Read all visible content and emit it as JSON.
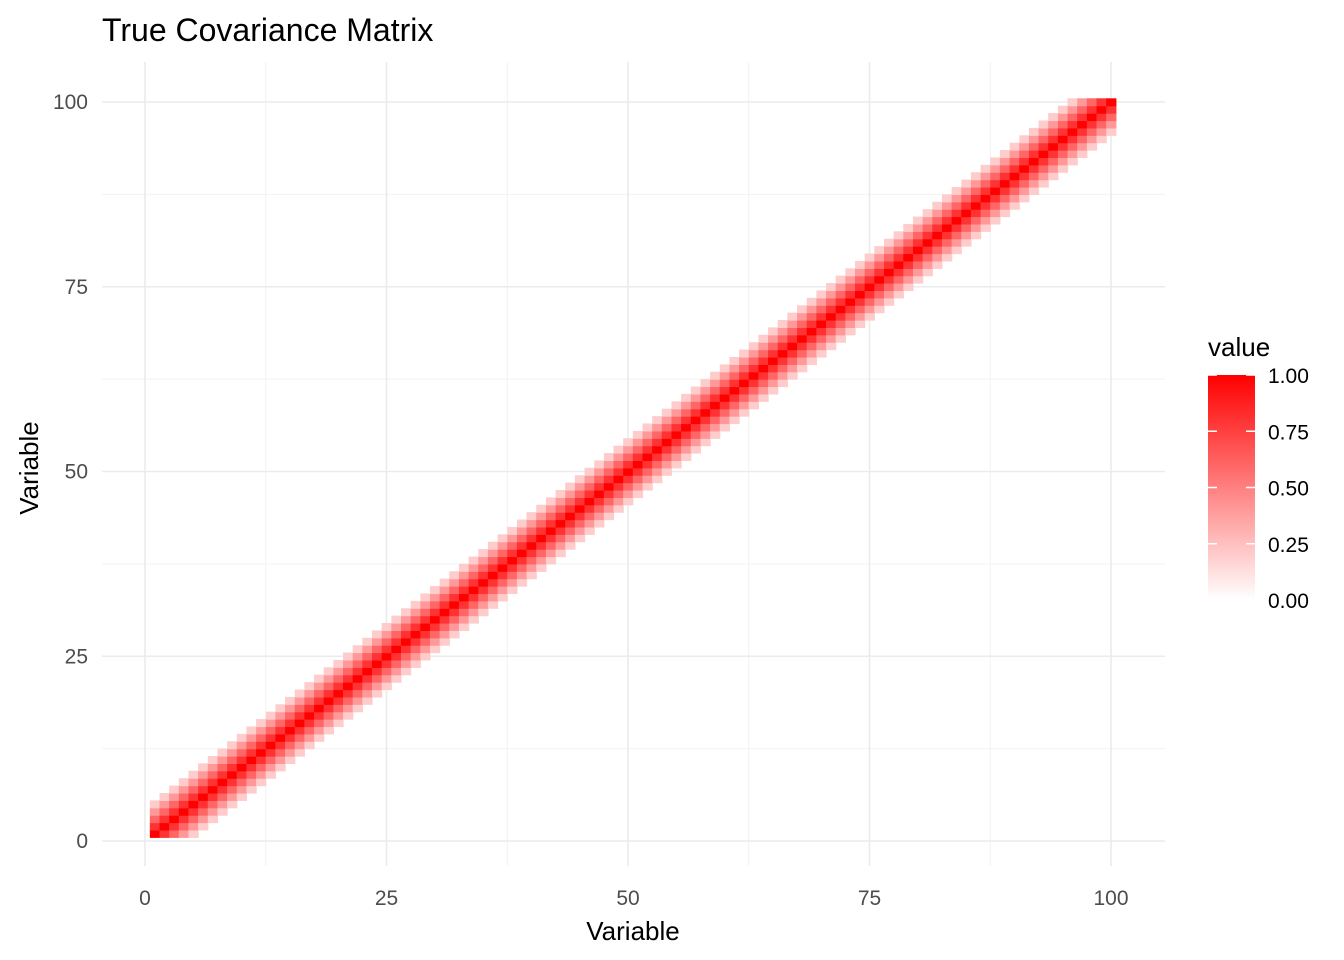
{
  "chart_data": {
    "type": "heatmap",
    "title": "True Covariance Matrix",
    "xlabel": "Variable",
    "ylabel": "Variable",
    "xlim": [
      0,
      100
    ],
    "ylim": [
      0,
      100
    ],
    "x_ticks": [
      "0",
      "25",
      "50",
      "75",
      "100"
    ],
    "y_ticks": [
      "0",
      "25",
      "50",
      "75",
      "100"
    ],
    "n_variables": 100,
    "matrix_rule": "value(i,j) = 1 - |i-j|/5 for |i-j| < 5, otherwise 0 (banded)",
    "band_values_by_offset": [
      1.0,
      0.8,
      0.6,
      0.4,
      0.2,
      0.0
    ],
    "grid": true,
    "legend": {
      "title": "value",
      "position": "right",
      "labels": [
        "1.00",
        "0.75",
        "0.50",
        "0.25",
        "0.00"
      ],
      "scale_low": 0,
      "scale_high": 1
    },
    "colors": {
      "low": "#ffffff",
      "high": "#ff0000"
    }
  }
}
